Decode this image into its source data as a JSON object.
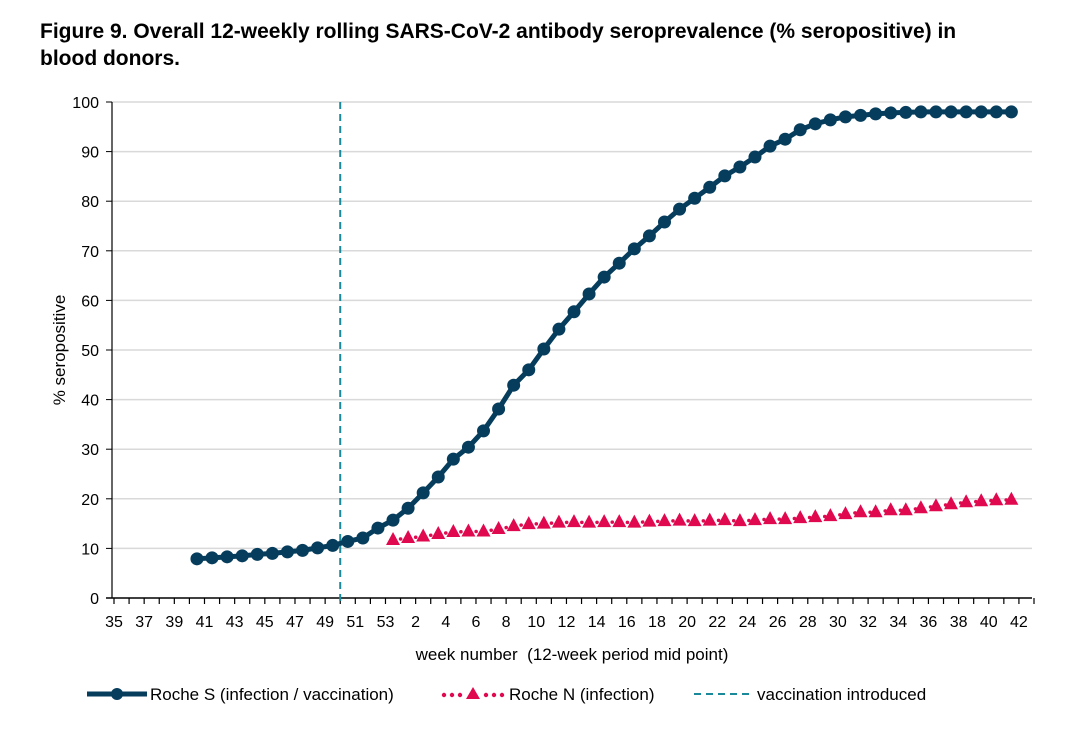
{
  "chart_data": {
    "type": "line",
    "title": "Figure 9. Overall 12-weekly rolling SARS-CoV-2 antibody seroprevalence (% seropositive) in blood donors.",
    "xlabel": "week number  (12-week period mid point)",
    "ylabel": "% seropositive",
    "ylim": [
      0,
      100
    ],
    "yticks": [
      0,
      10,
      20,
      30,
      40,
      50,
      60,
      70,
      80,
      90,
      100
    ],
    "grid": true,
    "legend_position": "bottom",
    "x_weeks": [
      35,
      36,
      37,
      38,
      39,
      40,
      41,
      42,
      43,
      44,
      45,
      46,
      47,
      48,
      49,
      50,
      51,
      52,
      53,
      1,
      2,
      3,
      4,
      5,
      6,
      7,
      8,
      9,
      10,
      11,
      12,
      13,
      14,
      15,
      16,
      17,
      18,
      19,
      20,
      21,
      22,
      23,
      24,
      25,
      26,
      27,
      28,
      29,
      30,
      31,
      32,
      33,
      34,
      35,
      36,
      37,
      38,
      39,
      40,
      41,
      42
    ],
    "x_tick_labels": [
      "35",
      "37",
      "39",
      "41",
      "43",
      "45",
      "47",
      "49",
      "51",
      "53",
      "2",
      "4",
      "6",
      "8",
      "10",
      "12",
      "14",
      "16",
      "18",
      "20",
      "22",
      "24",
      "26",
      "28",
      "30",
      "32",
      "34",
      "36",
      "38",
      "40",
      "42"
    ],
    "series": [
      {
        "name": "Roche S (infection / vaccination)",
        "color": "#063d5c",
        "marker": "circle",
        "start_week_offset": 5.5,
        "values": [
          7.9,
          8.1,
          8.3,
          8.5,
          8.8,
          9.0,
          9.3,
          9.6,
          10.1,
          10.6,
          11.4,
          12.1,
          14.1,
          15.7,
          18.1,
          21.2,
          24.4,
          28.0,
          30.4,
          33.7,
          38.1,
          42.9,
          46.0,
          50.2,
          54.2,
          57.7,
          61.3,
          64.7,
          67.5,
          70.4,
          73.0,
          75.8,
          78.4,
          80.6,
          82.8,
          85.1,
          86.9,
          88.9,
          91.1,
          92.5,
          94.4,
          95.6,
          96.4,
          97.0,
          97.3,
          97.6,
          97.8,
          97.9,
          98.0,
          98.0,
          98.0,
          98.0,
          98.0,
          98.0,
          98.0
        ]
      },
      {
        "name": "Roche N (infection)",
        "color": "#e0094f",
        "marker": "triangle",
        "start_week_offset": 18.5,
        "values": [
          11.7,
          12.1,
          12.4,
          12.9,
          13.3,
          13.4,
          13.4,
          13.9,
          14.5,
          14.9,
          15.0,
          15.2,
          15.3,
          15.2,
          15.3,
          15.3,
          15.2,
          15.4,
          15.5,
          15.6,
          15.5,
          15.6,
          15.7,
          15.5,
          15.7,
          15.9,
          15.9,
          16.1,
          16.3,
          16.5,
          16.9,
          17.3,
          17.3,
          17.7,
          17.7,
          18.1,
          18.5,
          18.9,
          19.3,
          19.5,
          19.7,
          19.8
        ]
      }
    ],
    "annotations": [
      {
        "name": "vaccination introduced",
        "type": "vertical-dashed-line",
        "week": 50,
        "color": "#1a8a9a"
      }
    ]
  },
  "legend": {
    "s_label": "Roche S (infection / vaccination)",
    "n_label": "Roche N (infection)",
    "vax_label": "vaccination introduced"
  }
}
